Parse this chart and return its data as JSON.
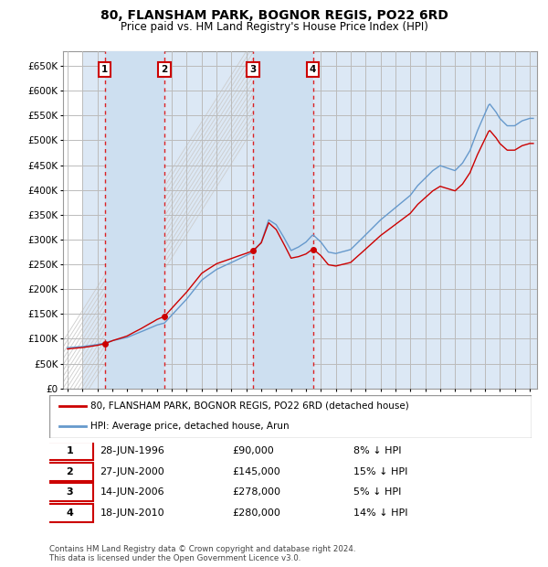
{
  "title": "80, FLANSHAM PARK, BOGNOR REGIS, PO22 6RD",
  "subtitle": "Price paid vs. HM Land Registry's House Price Index (HPI)",
  "ylim": [
    0,
    680000
  ],
  "yticks": [
    0,
    50000,
    100000,
    150000,
    200000,
    250000,
    300000,
    350000,
    400000,
    450000,
    500000,
    550000,
    600000,
    650000
  ],
  "ytick_labels": [
    "£0",
    "£50K",
    "£100K",
    "£150K",
    "£200K",
    "£250K",
    "£300K",
    "£350K",
    "£400K",
    "£450K",
    "£500K",
    "£550K",
    "£600K",
    "£650K"
  ],
  "xlim_start": 1993.7,
  "xlim_end": 2025.5,
  "sale_dates": [
    1996.49,
    2000.49,
    2006.45,
    2010.46
  ],
  "sale_prices": [
    90000,
    145000,
    278000,
    280000
  ],
  "sale_labels": [
    "1",
    "2",
    "3",
    "4"
  ],
  "price_line_color": "#cc0000",
  "hpi_line_color": "#6699cc",
  "grid_color": "#bbbbbb",
  "hpi_bg_color": "#dce8f5",
  "sale_bg_color": "#cddff0",
  "hatch_color": "#cccccc",
  "legend_box_label": "80, FLANSHAM PARK, BOGNOR REGIS, PO22 6RD (detached house)",
  "legend_hpi_label": "HPI: Average price, detached house, Arun",
  "footer": "Contains HM Land Registry data © Crown copyright and database right 2024.\nThis data is licensed under the Open Government Licence v3.0.",
  "table_rows": [
    [
      "1",
      "28-JUN-1996",
      "£90,000",
      "8% ↓ HPI"
    ],
    [
      "2",
      "27-JUN-2000",
      "£145,000",
      "15% ↓ HPI"
    ],
    [
      "3",
      "14-JUN-2006",
      "£278,000",
      "5% ↓ HPI"
    ],
    [
      "4",
      "18-JUN-2010",
      "£280,000",
      "14% ↓ HPI"
    ]
  ]
}
